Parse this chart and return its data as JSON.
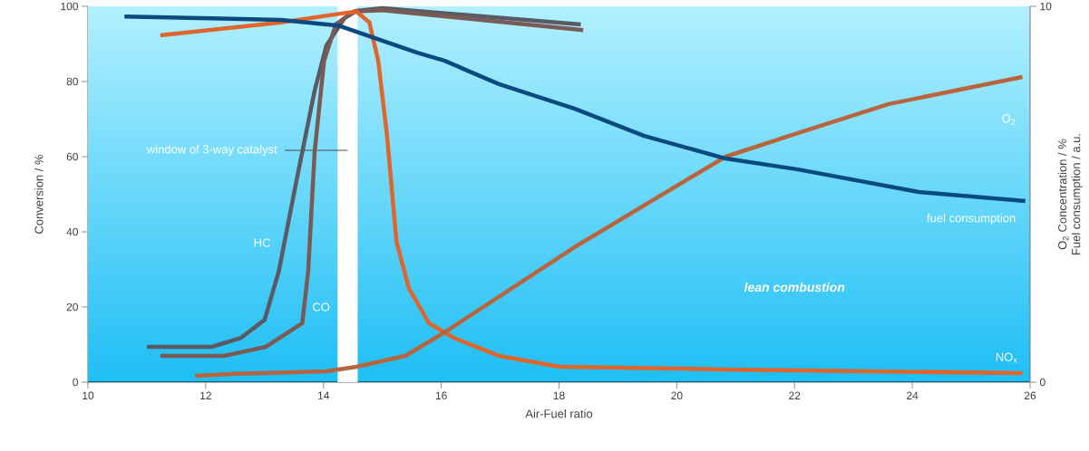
{
  "chart_data": {
    "type": "line",
    "xlabel": "Air-Fuel ratio",
    "ylabel": "Conversion / %",
    "y2label": "O$_{2}$ Concentration / % Fuel consumption / a.u.",
    "xlim": [
      10,
      26
    ],
    "xticks": [
      10,
      12,
      14,
      16,
      18,
      20,
      22,
      24,
      26
    ],
    "ylim": [
      0,
      100
    ],
    "yticks": [
      0,
      20,
      40,
      60,
      80,
      100
    ],
    "y2lim": [
      0,
      10
    ],
    "y2ticks": [
      0,
      10
    ],
    "series": [
      {
        "name": "HC",
        "color": "#5a5a64",
        "x": [
          11.0,
          12.1,
          12.6,
          13.0,
          13.24,
          13.54,
          13.85,
          14.05,
          14.36,
          14.56,
          15.0,
          18.37
        ],
        "values": [
          9.4,
          9.4,
          11.8,
          16.6,
          29.4,
          53.5,
          77.6,
          89.6,
          96.9,
          98.8,
          99.5,
          95.2
        ]
      },
      {
        "name": "CO",
        "color": "#7a5a55",
        "x": [
          11.23,
          12.31,
          13.02,
          13.64,
          13.74,
          13.85,
          14.01,
          14.21,
          14.51,
          15.0,
          18.41
        ],
        "values": [
          7.0,
          7.0,
          9.4,
          15.7,
          29.4,
          61.4,
          85.5,
          95.2,
          98.6,
          99.0,
          93.7
        ]
      },
      {
        "name": "NO$_{x}$",
        "color": "#e0652a",
        "x": [
          11.23,
          13.28,
          14.31,
          14.56,
          14.78,
          14.93,
          15.08,
          15.24,
          15.45,
          15.79,
          16.21,
          16.98,
          18.01,
          20.83,
          25.87
        ],
        "values": [
          92.3,
          95.7,
          98.1,
          98.6,
          95.7,
          85.5,
          65.5,
          37.3,
          25.0,
          15.7,
          11.8,
          7.0,
          4.1,
          3.4,
          2.4
        ]
      },
      {
        "name": "O$_{2}$",
        "color": "#b8643c",
        "axis": "y2",
        "x": [
          11.82,
          12.5,
          14.05,
          14.56,
          15.39,
          16.06,
          18.26,
          20.83,
          22.06,
          23.6,
          25.87
        ],
        "values": [
          0.17,
          0.22,
          0.29,
          0.41,
          0.7,
          1.33,
          3.59,
          6.0,
          6.63,
          7.4,
          8.12
        ]
      },
      {
        "name": "fuel consumption",
        "color": "#0b4a80",
        "axis": "y2",
        "x": [
          10.62,
          13.28,
          14.25,
          15.59,
          16.06,
          16.98,
          18.26,
          19.45,
          20.83,
          22.06,
          24.11,
          25.92
        ],
        "values": [
          9.73,
          9.64,
          9.49,
          8.77,
          8.55,
          7.93,
          7.28,
          6.55,
          5.95,
          5.66,
          5.06,
          4.82
        ]
      }
    ],
    "bands": [
      {
        "axis": "x",
        "from": 14.24,
        "to": 14.58,
        "label": "window of 3-way catalyst",
        "color": "#ffffff"
      }
    ],
    "annotations": [
      "lean combustion"
    ]
  }
}
